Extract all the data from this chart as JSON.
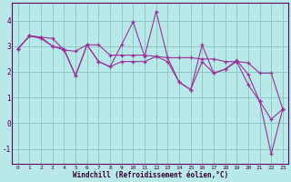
{
  "xlabel": "Windchill (Refroidissement éolien,°C)",
  "background_color": "#b8e8e8",
  "grid_color": "#90c8c8",
  "line_color": "#993399",
  "xlim": [
    -0.5,
    23.5
  ],
  "ylim": [
    -1.6,
    4.7
  ],
  "yticks": [
    -1,
    0,
    1,
    2,
    3,
    4
  ],
  "xticks": [
    0,
    1,
    2,
    3,
    4,
    5,
    6,
    7,
    8,
    9,
    10,
    11,
    12,
    13,
    14,
    15,
    16,
    17,
    18,
    19,
    20,
    21,
    22,
    23
  ],
  "x": [
    0,
    1,
    2,
    3,
    4,
    5,
    6,
    7,
    8,
    9,
    10,
    11,
    12,
    13,
    14,
    15,
    16,
    17,
    18,
    19,
    20,
    21,
    22,
    23
  ],
  "y_zigzag": [
    2.9,
    3.4,
    3.3,
    3.0,
    2.9,
    1.85,
    3.05,
    2.4,
    2.2,
    3.05,
    3.95,
    2.6,
    4.35,
    2.55,
    1.6,
    1.3,
    3.05,
    1.95,
    2.1,
    2.45,
    1.9,
    0.85,
    0.15,
    0.55
  ],
  "y_upper": [
    2.9,
    3.4,
    3.35,
    3.3,
    2.85,
    2.8,
    3.05,
    3.05,
    2.65,
    2.65,
    2.65,
    2.65,
    2.6,
    2.55,
    2.55,
    2.55,
    2.5,
    2.5,
    2.4,
    2.4,
    2.35,
    1.95,
    1.95,
    0.55
  ],
  "y_lower": [
    2.9,
    3.4,
    3.35,
    3.0,
    2.85,
    1.85,
    3.05,
    2.4,
    2.2,
    2.4,
    2.4,
    2.4,
    2.6,
    2.4,
    1.6,
    1.3,
    2.4,
    1.95,
    2.1,
    2.4,
    1.5,
    0.85,
    -1.2,
    0.55
  ]
}
